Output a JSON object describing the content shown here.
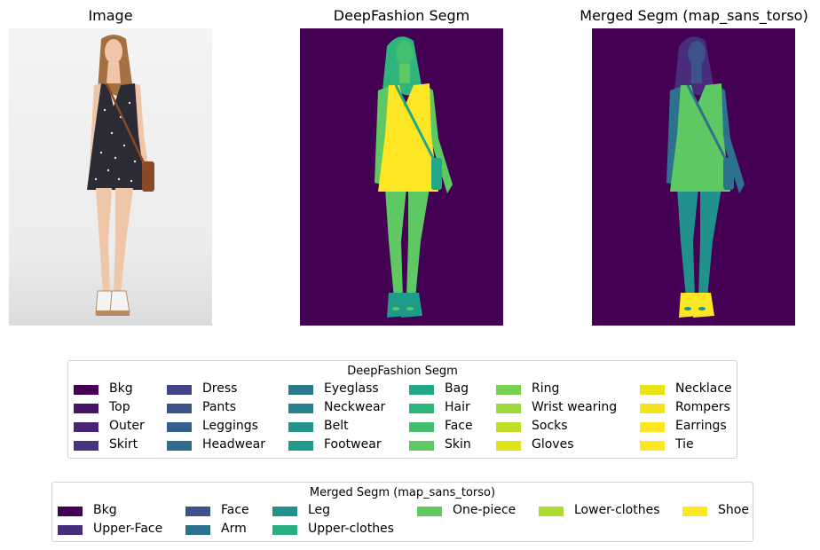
{
  "panels": {
    "image_title": "Image",
    "deepfashion_title": "DeepFashion Segm",
    "merged_title": "Merged Segm (map_sans_torso)"
  },
  "legend_deepfashion": {
    "title": "DeepFashion Segm",
    "columns": [
      [
        {
          "label": "Bkg",
          "color": "#440154"
        },
        {
          "label": "Top",
          "color": "#471365"
        },
        {
          "label": "Outer",
          "color": "#482475"
        },
        {
          "label": "Skirt",
          "color": "#463480"
        }
      ],
      [
        {
          "label": "Dress",
          "color": "#414487"
        },
        {
          "label": "Pants",
          "color": "#3b528b"
        },
        {
          "label": "Leggings",
          "color": "#355f8d"
        },
        {
          "label": "Headwear",
          "color": "#2f6c8e"
        }
      ],
      [
        {
          "label": "Eyeglass",
          "color": "#2a788e"
        },
        {
          "label": "Neckwear",
          "color": "#25848e"
        },
        {
          "label": "Belt",
          "color": "#21918c"
        },
        {
          "label": "Footwear",
          "color": "#1e9c89"
        }
      ],
      [
        {
          "label": "Bag",
          "color": "#22a884"
        },
        {
          "label": "Hair",
          "color": "#2fb47c"
        },
        {
          "label": "Face",
          "color": "#44bf70"
        },
        {
          "label": "Skin",
          "color": "#5ec962"
        }
      ],
      [
        {
          "label": "Ring",
          "color": "#7ad151"
        },
        {
          "label": "Wrist wearing",
          "color": "#9bd93c"
        },
        {
          "label": "Socks",
          "color": "#bddf26"
        },
        {
          "label": "Gloves",
          "color": "#dfe318"
        }
      ],
      [
        {
          "label": "Necklace",
          "color": "#e6e419"
        },
        {
          "label": "Rompers",
          "color": "#f1e51d"
        },
        {
          "label": "Earrings",
          "color": "#fde725"
        },
        {
          "label": "Tie",
          "color": "#fde725"
        }
      ]
    ]
  },
  "legend_merged": {
    "title": "Merged Segm (map_sans_torso)",
    "columns": [
      [
        {
          "label": "Bkg",
          "color": "#440154"
        },
        {
          "label": "Upper-Face",
          "color": "#472d7b"
        }
      ],
      [
        {
          "label": "Face",
          "color": "#3b528b"
        },
        {
          "label": "Arm",
          "color": "#2c728e"
        }
      ],
      [
        {
          "label": "Leg",
          "color": "#21918c"
        },
        {
          "label": "Upper-clothes",
          "color": "#28ae80"
        }
      ],
      [
        {
          "label": "One-piece",
          "color": "#5ec962"
        }
      ],
      [
        {
          "label": "Lower-clothes",
          "color": "#addc30"
        }
      ],
      [
        {
          "label": "Shoe",
          "color": "#fde725"
        }
      ]
    ]
  }
}
